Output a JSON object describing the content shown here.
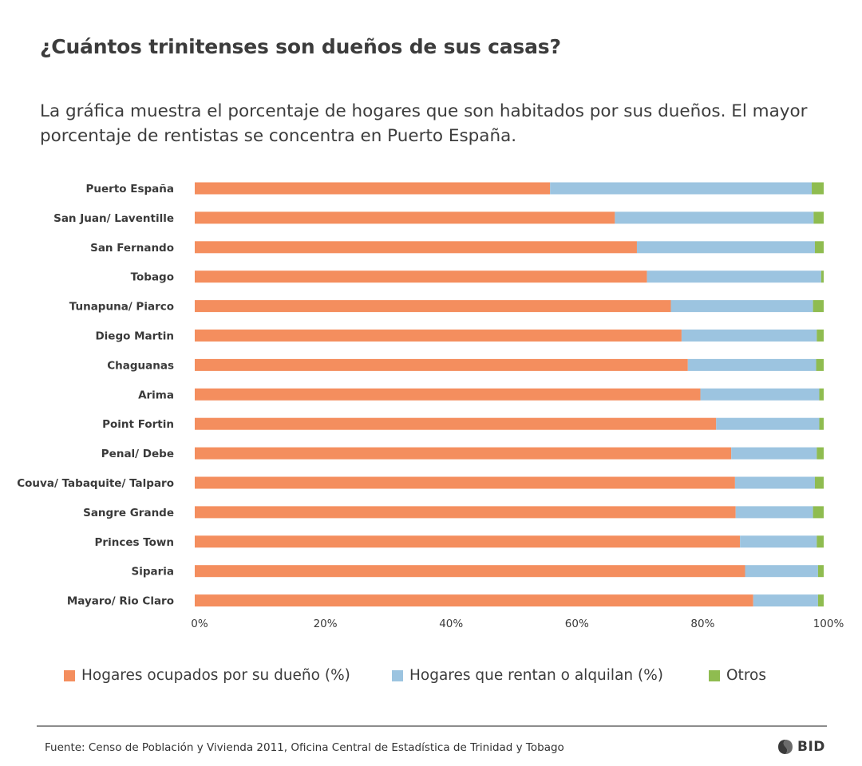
{
  "header": {
    "title": "¿Cuántos trinitenses son dueños de sus casas?",
    "subtitle": "La gráfica muestra el porcentaje de hogares que son habitados por sus dueños. El mayor porcentaje de rentistas se concentra en Puerto España."
  },
  "colors": {
    "owned": "#f48e5e",
    "rented": "#9cc4e0",
    "other": "#8fbc50"
  },
  "chart_data": {
    "type": "bar",
    "orientation": "horizontal",
    "stacked": true,
    "title": "¿Cuántos trinitenses son dueños de sus casas?",
    "categories": [
      "Puerto España",
      "San Juan/ Laventille",
      "San Fernando",
      "Tobago",
      "Tunapuna/ Piarco",
      "Diego Martin",
      "Chaguanas",
      "Arima",
      "Point Fortin",
      "Penal/ Debe",
      "Couva/ Tabaquite/ Talparo",
      "Sangre Grande",
      "Princes Town",
      "Siparia",
      "Mayaro/ Rio Claro"
    ],
    "series": [
      {
        "name": "Hogares ocupados por su dueño (%)",
        "values": [
          56.5,
          66.8,
          70.3,
          71.9,
          75.7,
          77.4,
          78.4,
          80.4,
          82.9,
          85.3,
          85.9,
          86.0,
          86.7,
          87.5,
          88.8
        ]
      },
      {
        "name": "Hogares que rentan o alquilan (%)",
        "values": [
          41.6,
          31.6,
          28.3,
          27.7,
          22.6,
          21.5,
          20.4,
          18.9,
          16.4,
          13.6,
          12.7,
          12.3,
          12.2,
          11.6,
          10.3
        ]
      },
      {
        "name": "Otros",
        "values": [
          1.9,
          1.6,
          1.4,
          0.4,
          1.7,
          1.1,
          1.2,
          0.7,
          0.7,
          1.1,
          1.4,
          1.7,
          1.1,
          0.9,
          0.9
        ]
      }
    ],
    "xlim": [
      0,
      100
    ],
    "x_ticks": [
      "0%",
      "20%",
      "40%",
      "60%",
      "80%",
      "100%"
    ],
    "legend_position": "bottom"
  },
  "legend": {
    "owned": "Hogares ocupados por su dueño (%)",
    "rented": "Hogares que rentan o alquilan (%)",
    "other": "Otros"
  },
  "footer": {
    "source": "Fuente:  Censo de Población y Vivienda 2011, Oficina Central de Estadística de Trinidad y Tobago",
    "logo": "BID"
  }
}
